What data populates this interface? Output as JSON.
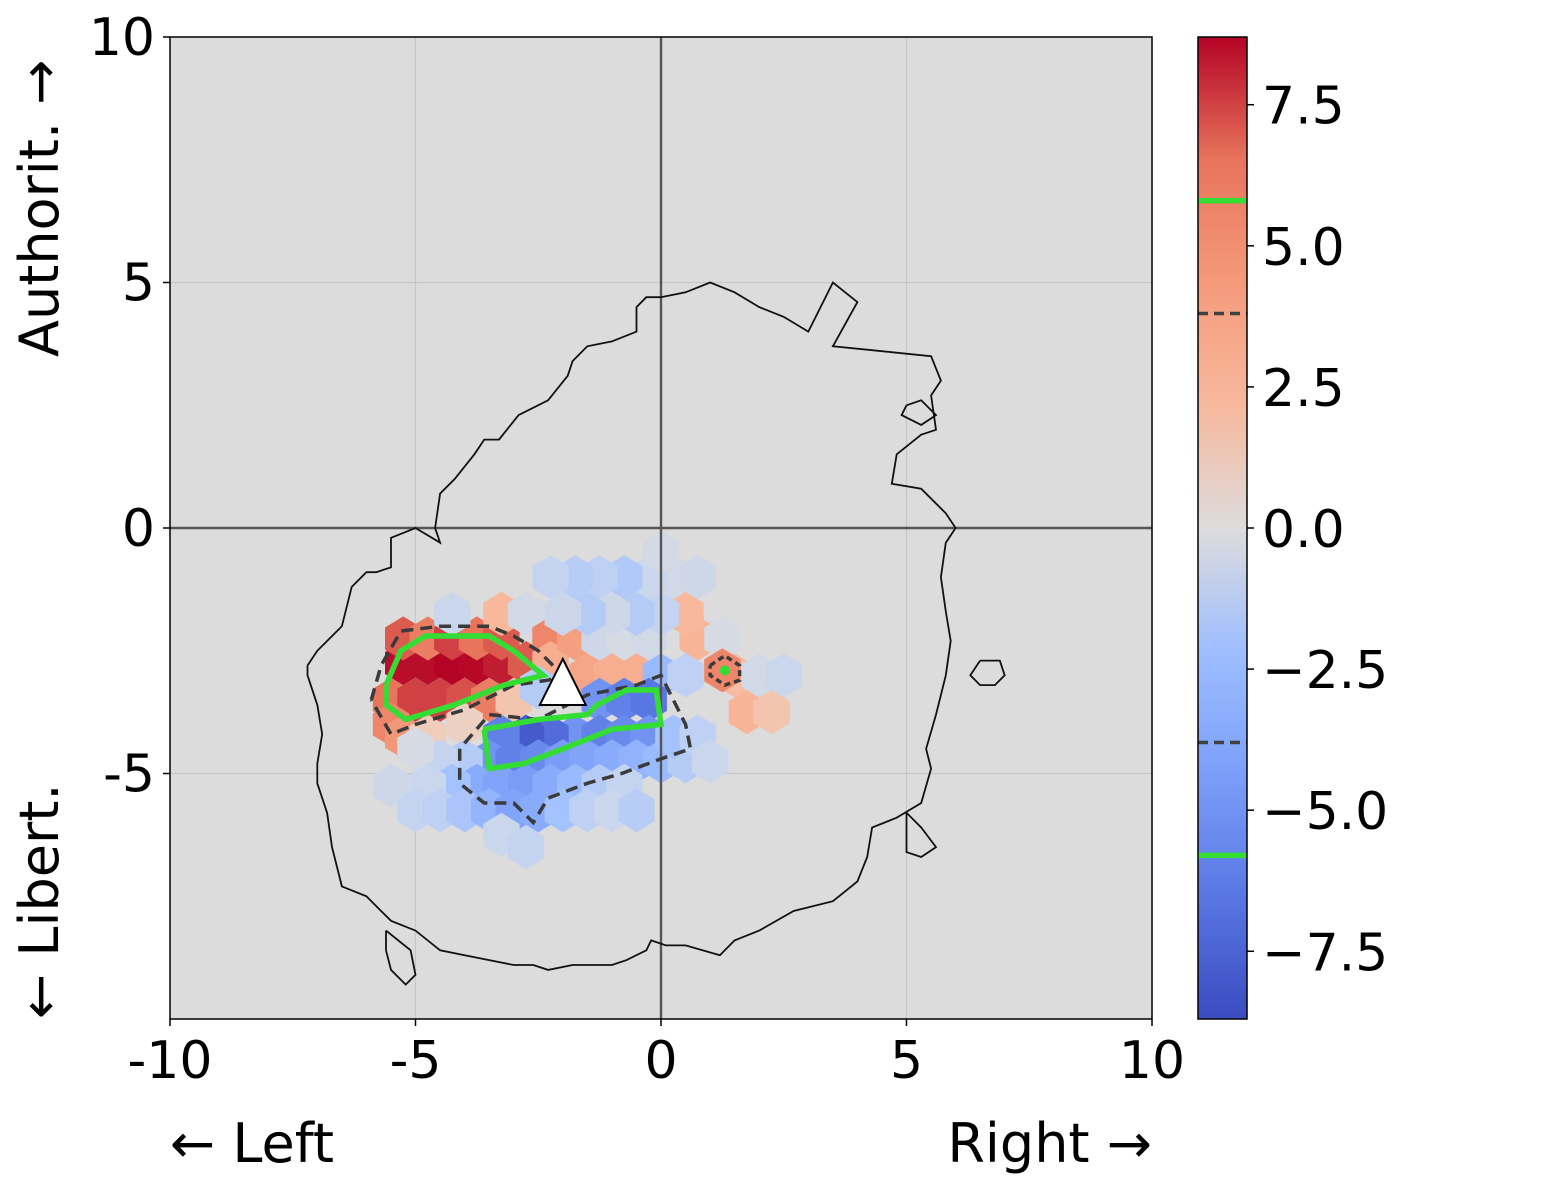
{
  "chart_data": {
    "type": "heatmap",
    "subtype": "hexbin",
    "title": "",
    "xlim": [
      -10,
      10
    ],
    "ylim": [
      -10,
      10
    ],
    "xticks": [
      "-10",
      "-5",
      "0",
      "5",
      "10"
    ],
    "yticks": [
      "-5",
      "0",
      "5",
      "10"
    ],
    "x_label_left": "← Left",
    "x_label_right": "Right →",
    "y_label_bottom": "← Libert.",
    "y_label_top": "Authorit. →",
    "grid": true,
    "background_color": "#dcdcdc",
    "colormap": "coolwarm",
    "colorbar": {
      "range": [
        -8.7,
        8.7
      ],
      "ticks": [
        "−7.5",
        "−5.0",
        "−2.5",
        "0.0",
        "2.5",
        "5.0",
        "7.5"
      ],
      "tick_values": [
        -7.5,
        -5.0,
        -2.5,
        0.0,
        2.5,
        5.0,
        7.5
      ],
      "contour_levels": [
        {
          "value": 5.8,
          "style": "solid",
          "color": "#33dd33"
        },
        {
          "value": 3.8,
          "style": "dashed",
          "color": "#404040"
        },
        {
          "value": -3.8,
          "style": "dashed",
          "color": "#404040"
        },
        {
          "value": -5.8,
          "style": "solid",
          "color": "#33dd33"
        }
      ]
    },
    "hexbins": [
      {
        "x": -5.5,
        "y": -3.5,
        "v": 6.5
      },
      {
        "x": -5.25,
        "y": -2.75,
        "v": 8.5
      },
      {
        "x": -5.0,
        "y": -3.5,
        "v": 7.5
      },
      {
        "x": -4.75,
        "y": -2.75,
        "v": 8.5
      },
      {
        "x": -4.5,
        "y": -3.5,
        "v": 7.5
      },
      {
        "x": -4.25,
        "y": -2.75,
        "v": 8.7
      },
      {
        "x": -4.0,
        "y": -3.5,
        "v": 7.2
      },
      {
        "x": -3.75,
        "y": -2.75,
        "v": 8.6
      },
      {
        "x": -3.5,
        "y": -3.5,
        "v": 6.0
      },
      {
        "x": -3.25,
        "y": -2.75,
        "v": 8.2
      },
      {
        "x": -2.75,
        "y": -2.75,
        "v": 7.0
      },
      {
        "x": -5.25,
        "y": -2.25,
        "v": 7.0
      },
      {
        "x": -4.75,
        "y": -2.25,
        "v": 6.0
      },
      {
        "x": -4.25,
        "y": -2.25,
        "v": 7.5
      },
      {
        "x": -3.75,
        "y": -2.25,
        "v": 6.5
      },
      {
        "x": -3.25,
        "y": -2.25,
        "v": 7.0
      },
      {
        "x": -5.5,
        "y": -4.0,
        "v": 5.5
      },
      {
        "x": -5.25,
        "y": -4.25,
        "v": 4.5
      },
      {
        "x": -4.75,
        "y": -4.25,
        "v": 1.0
      },
      {
        "x": -4.0,
        "y": -4.0,
        "v": 0.8
      },
      {
        "x": -4.25,
        "y": -1.75,
        "v": -0.8
      },
      {
        "x": -3.25,
        "y": -1.75,
        "v": 2.2
      },
      {
        "x": -2.75,
        "y": -1.75,
        "v": -0.5
      },
      {
        "x": -2.25,
        "y": -2.25,
        "v": 5.5
      },
      {
        "x": -2.25,
        "y": -2.75,
        "v": 3.0
      },
      {
        "x": -1.75,
        "y": -2.25,
        "v": 4.0
      },
      {
        "x": -1.5,
        "y": -3.0,
        "v": 3.5
      },
      {
        "x": -1.0,
        "y": -3.0,
        "v": 3.0
      },
      {
        "x": -1.25,
        "y": -2.25,
        "v": -0.6
      },
      {
        "x": -0.75,
        "y": -2.25,
        "v": -0.3
      },
      {
        "x": -0.25,
        "y": -2.25,
        "v": -0.5
      },
      {
        "x": -0.5,
        "y": -3.0,
        "v": 3.0
      },
      {
        "x": 0.0,
        "y": -3.0,
        "v": -2.5
      },
      {
        "x": 0.75,
        "y": -2.25,
        "v": 2.5
      },
      {
        "x": 0.5,
        "y": -3.0,
        "v": -1.2
      },
      {
        "x": 1.25,
        "y": -2.25,
        "v": -0.3
      },
      {
        "x": 1.5,
        "y": -3.0,
        "v": 2.0
      },
      {
        "x": 2.0,
        "y": -3.0,
        "v": -0.5
      },
      {
        "x": 2.5,
        "y": -3.0,
        "v": -0.8
      },
      {
        "x": 1.75,
        "y": -3.75,
        "v": 2.5
      },
      {
        "x": 2.25,
        "y": -3.75,
        "v": 1.5
      },
      {
        "x": 1.25,
        "y": -2.9,
        "v": 5.5
      },
      {
        "x": 0.5,
        "y": -1.75,
        "v": 2.2
      },
      {
        "x": 0.0,
        "y": -1.75,
        "v": -1.0
      },
      {
        "x": -0.5,
        "y": -1.75,
        "v": -1.5
      },
      {
        "x": -1.0,
        "y": -1.75,
        "v": -0.6
      },
      {
        "x": -1.5,
        "y": -1.75,
        "v": -1.5
      },
      {
        "x": -2.0,
        "y": -1.75,
        "v": -0.7
      },
      {
        "x": 0.25,
        "y": -1.0,
        "v": -0.5
      },
      {
        "x": -0.25,
        "y": -1.0,
        "v": -0.8
      },
      {
        "x": 0.75,
        "y": -1.0,
        "v": -0.6
      },
      {
        "x": -0.75,
        "y": -1.0,
        "v": -1.6
      },
      {
        "x": -1.25,
        "y": -1.0,
        "v": -1.2
      },
      {
        "x": -1.75,
        "y": -1.0,
        "v": -1.4
      },
      {
        "x": -2.25,
        "y": -1.0,
        "v": -1.0
      },
      {
        "x": 0.0,
        "y": -0.5,
        "v": -0.4
      },
      {
        "x": -3.0,
        "y": -3.5,
        "v": 1.5
      },
      {
        "x": -2.5,
        "y": -3.25,
        "v": -1.5
      },
      {
        "x": -1.25,
        "y": -3.5,
        "v": -5.0
      },
      {
        "x": -0.75,
        "y": -3.5,
        "v": -6.0
      },
      {
        "x": -0.25,
        "y": -3.5,
        "v": -6.5
      },
      {
        "x": -1.75,
        "y": -4.25,
        "v": -5.0
      },
      {
        "x": -1.25,
        "y": -4.25,
        "v": -6.0
      },
      {
        "x": -0.75,
        "y": -4.25,
        "v": -5.5
      },
      {
        "x": -0.25,
        "y": -4.25,
        "v": -5.0
      },
      {
        "x": -2.25,
        "y": -4.25,
        "v": -7.0
      },
      {
        "x": -2.75,
        "y": -4.25,
        "v": -8.0
      },
      {
        "x": -3.25,
        "y": -4.25,
        "v": -6.0
      },
      {
        "x": -3.5,
        "y": -4.75,
        "v": -5.0
      },
      {
        "x": -3.0,
        "y": -4.75,
        "v": -6.0
      },
      {
        "x": -2.5,
        "y": -4.75,
        "v": -5.5
      },
      {
        "x": -2.0,
        "y": -4.75,
        "v": -4.5
      },
      {
        "x": -1.5,
        "y": -4.75,
        "v": -4.0
      },
      {
        "x": -1.0,
        "y": -4.75,
        "v": -3.5
      },
      {
        "x": -0.5,
        "y": -4.75,
        "v": -3.0
      },
      {
        "x": 0.0,
        "y": -4.75,
        "v": -2.5
      },
      {
        "x": 0.5,
        "y": -4.75,
        "v": -1.5
      },
      {
        "x": 0.25,
        "y": -4.25,
        "v": -2.0
      },
      {
        "x": 0.75,
        "y": -4.25,
        "v": -1.2
      },
      {
        "x": 1.0,
        "y": -4.75,
        "v": -0.8
      },
      {
        "x": -4.0,
        "y": -4.75,
        "v": -1.5
      },
      {
        "x": -4.5,
        "y": -4.75,
        "v": -1.0
      },
      {
        "x": -3.75,
        "y": -5.25,
        "v": -3.5
      },
      {
        "x": -3.25,
        "y": -5.25,
        "v": -4.0
      },
      {
        "x": -2.75,
        "y": -5.25,
        "v": -4.5
      },
      {
        "x": -2.25,
        "y": -5.25,
        "v": -3.5
      },
      {
        "x": -1.75,
        "y": -5.25,
        "v": -2.5
      },
      {
        "x": -1.25,
        "y": -5.25,
        "v": -1.5
      },
      {
        "x": -0.75,
        "y": -5.25,
        "v": -1.0
      },
      {
        "x": -4.25,
        "y": -5.25,
        "v": -2.0
      },
      {
        "x": -4.75,
        "y": -5.25,
        "v": -0.8
      },
      {
        "x": -5.5,
        "y": -5.25,
        "v": -0.6
      },
      {
        "x": -5.0,
        "y": -5.75,
        "v": -1.0
      },
      {
        "x": -4.5,
        "y": -5.75,
        "v": -1.2
      },
      {
        "x": -4.0,
        "y": -5.75,
        "v": -1.8
      },
      {
        "x": -3.5,
        "y": -5.75,
        "v": -2.8
      },
      {
        "x": -3.0,
        "y": -5.75,
        "v": -4.0
      },
      {
        "x": -2.5,
        "y": -5.75,
        "v": -3.5
      },
      {
        "x": -2.0,
        "y": -5.75,
        "v": -2.0
      },
      {
        "x": -1.5,
        "y": -5.75,
        "v": -1.2
      },
      {
        "x": -1.0,
        "y": -5.75,
        "v": -0.8
      },
      {
        "x": -0.5,
        "y": -5.75,
        "v": -1.4
      },
      {
        "x": -3.25,
        "y": -6.25,
        "v": -0.8
      },
      {
        "x": -2.75,
        "y": -6.5,
        "v": -1.0
      },
      {
        "x": -5.0,
        "y": -4.5,
        "v": -0.3
      }
    ],
    "contours": {
      "support_outline": [
        [
          -7.2,
          -2.8
        ],
        [
          -7.0,
          -2.5
        ],
        [
          -6.5,
          -2.0
        ],
        [
          -6.3,
          -1.2
        ],
        [
          -6.0,
          -0.9
        ],
        [
          -5.8,
          -0.9
        ],
        [
          -5.5,
          -0.8
        ],
        [
          -5.5,
          -0.2
        ],
        [
          -5.0,
          0.0
        ],
        [
          -4.5,
          -0.3
        ],
        [
          -4.6,
          0.0
        ],
        [
          -4.5,
          0.7
        ],
        [
          -4.2,
          1.0
        ],
        [
          -3.8,
          1.5
        ],
        [
          -3.6,
          1.8
        ],
        [
          -3.3,
          1.8
        ],
        [
          -2.9,
          2.3
        ],
        [
          -2.3,
          2.6
        ],
        [
          -1.9,
          3.1
        ],
        [
          -1.8,
          3.4
        ],
        [
          -1.5,
          3.7
        ],
        [
          -1.0,
          3.8
        ],
        [
          -0.5,
          4.0
        ],
        [
          -0.5,
          4.5
        ],
        [
          -0.3,
          4.7
        ],
        [
          0.0,
          4.7
        ],
        [
          0.5,
          4.8
        ],
        [
          1.0,
          5.0
        ],
        [
          1.5,
          4.8
        ],
        [
          2.0,
          4.5
        ],
        [
          2.5,
          4.3
        ],
        [
          3.0,
          4.0
        ],
        [
          3.5,
          5.0
        ],
        [
          4.0,
          4.6
        ],
        [
          3.5,
          3.7
        ],
        [
          4.5,
          3.6
        ],
        [
          5.5,
          3.5
        ],
        [
          5.7,
          3.0
        ],
        [
          5.5,
          2.7
        ],
        [
          5.6,
          2.0
        ],
        [
          5.3,
          1.9
        ],
        [
          4.8,
          1.5
        ],
        [
          4.7,
          0.9
        ],
        [
          5.3,
          0.8
        ],
        [
          5.8,
          0.3
        ],
        [
          6.0,
          0.0
        ],
        [
          5.8,
          -0.3
        ],
        [
          5.7,
          -1.0
        ],
        [
          5.8,
          -1.7
        ],
        [
          5.9,
          -2.3
        ],
        [
          5.8,
          -3.0
        ],
        [
          5.6,
          -3.8
        ],
        [
          5.4,
          -4.5
        ],
        [
          5.5,
          -4.9
        ],
        [
          5.3,
          -5.6
        ],
        [
          4.8,
          -5.9
        ],
        [
          4.3,
          -6.1
        ],
        [
          4.2,
          -6.7
        ],
        [
          4.0,
          -7.2
        ],
        [
          3.5,
          -7.6
        ],
        [
          2.7,
          -7.8
        ],
        [
          2.0,
          -8.2
        ],
        [
          1.5,
          -8.4
        ],
        [
          1.2,
          -8.7
        ],
        [
          0.5,
          -8.5
        ],
        [
          0.1,
          -8.5
        ],
        [
          -0.2,
          -8.4
        ],
        [
          -0.3,
          -8.6
        ],
        [
          -0.7,
          -8.8
        ],
        [
          -1.0,
          -8.9
        ],
        [
          -1.8,
          -8.9
        ],
        [
          -2.3,
          -9.0
        ],
        [
          -2.6,
          -8.9
        ],
        [
          -3.0,
          -8.9
        ],
        [
          -3.5,
          -8.8
        ],
        [
          -4.0,
          -8.7
        ],
        [
          -4.5,
          -8.6
        ],
        [
          -5.0,
          -8.2
        ],
        [
          -5.5,
          -8.0
        ],
        [
          -5.7,
          -7.8
        ],
        [
          -6.0,
          -7.5
        ],
        [
          -6.5,
          -7.3
        ],
        [
          -6.7,
          -6.5
        ],
        [
          -6.8,
          -5.8
        ],
        [
          -7.0,
          -5.2
        ],
        [
          -7.0,
          -4.8
        ],
        [
          -6.9,
          -4.2
        ],
        [
          -7.0,
          -3.6
        ],
        [
          -7.2,
          -3.0
        ],
        [
          -7.2,
          -2.8
        ]
      ],
      "islands": [
        [
          [
            6.5,
            -2.7
          ],
          [
            6.9,
            -2.7
          ],
          [
            7.0,
            -3.0
          ],
          [
            6.8,
            -3.2
          ],
          [
            6.5,
            -3.2
          ],
          [
            6.3,
            -3.0
          ],
          [
            6.5,
            -2.7
          ]
        ],
        [
          [
            5.0,
            -5.8
          ],
          [
            5.3,
            -6.1
          ],
          [
            5.6,
            -6.5
          ],
          [
            5.3,
            -6.7
          ],
          [
            5.0,
            -6.6
          ],
          [
            5.0,
            -5.8
          ]
        ],
        [
          [
            5.0,
            2.5
          ],
          [
            5.3,
            2.6
          ],
          [
            5.6,
            2.3
          ],
          [
            5.3,
            2.1
          ],
          [
            4.9,
            2.3
          ],
          [
            5.0,
            2.5
          ]
        ],
        [
          [
            -5.6,
            -8.2
          ],
          [
            -5.1,
            -8.6
          ],
          [
            -5.0,
            -9.1
          ],
          [
            -5.2,
            -9.3
          ],
          [
            -5.5,
            -9.0
          ],
          [
            -5.6,
            -8.6
          ],
          [
            -5.6,
            -8.2
          ]
        ]
      ],
      "pos_dashed": [
        [
          -5.9,
          -3.5
        ],
        [
          -5.7,
          -2.8
        ],
        [
          -5.3,
          -2.1
        ],
        [
          -4.5,
          -2.0
        ],
        [
          -3.5,
          -2.0
        ],
        [
          -3.0,
          -2.2
        ],
        [
          -2.5,
          -2.5
        ],
        [
          -2.0,
          -3.0
        ],
        [
          -2.3,
          -3.1
        ],
        [
          -3.0,
          -3.2
        ],
        [
          -4.0,
          -3.7
        ],
        [
          -5.0,
          -4.0
        ],
        [
          -5.5,
          -4.2
        ],
        [
          -5.9,
          -3.5
        ]
      ],
      "pos_solid": [
        [
          -5.6,
          -3.2
        ],
        [
          -5.3,
          -2.5
        ],
        [
          -4.8,
          -2.2
        ],
        [
          -3.5,
          -2.2
        ],
        [
          -3.0,
          -2.5
        ],
        [
          -2.4,
          -3.0
        ],
        [
          -3.2,
          -3.2
        ],
        [
          -4.2,
          -3.6
        ],
        [
          -5.2,
          -3.9
        ],
        [
          -5.6,
          -3.6
        ],
        [
          -5.6,
          -3.2
        ]
      ],
      "neg_dashed": [
        [
          -4.1,
          -4.5
        ],
        [
          -4.1,
          -5.2
        ],
        [
          -3.6,
          -5.6
        ],
        [
          -3.0,
          -5.6
        ],
        [
          -2.6,
          -6.0
        ],
        [
          -2.3,
          -5.5
        ],
        [
          -1.5,
          -5.2
        ],
        [
          -0.8,
          -5.0
        ],
        [
          0.0,
          -4.7
        ],
        [
          0.6,
          -4.5
        ],
        [
          0.5,
          -4.0
        ],
        [
          0.0,
          -3.0
        ],
        [
          -0.5,
          -3.2
        ],
        [
          -1.5,
          -3.4
        ],
        [
          -2.5,
          -3.9
        ],
        [
          -3.5,
          -3.8
        ],
        [
          -4.1,
          -4.5
        ]
      ],
      "neg_solid": [
        [
          -3.6,
          -4.1
        ],
        [
          -3.5,
          -4.9
        ],
        [
          -2.8,
          -4.8
        ],
        [
          -2.0,
          -4.5
        ],
        [
          -1.0,
          -4.1
        ],
        [
          0.0,
          -4.0
        ],
        [
          -0.1,
          -3.3
        ],
        [
          -0.7,
          -3.3
        ],
        [
          -1.3,
          -3.6
        ],
        [
          -1.5,
          -3.8
        ],
        [
          -2.5,
          -3.9
        ],
        [
          -3.6,
          -4.1
        ]
      ],
      "small_pos_dashed": [
        [
          1.0,
          -2.8
        ],
        [
          1.3,
          -2.6
        ],
        [
          1.6,
          -2.8
        ],
        [
          1.6,
          -3.1
        ],
        [
          1.3,
          -3.2
        ],
        [
          1.0,
          -3.0
        ],
        [
          1.0,
          -2.8
        ]
      ]
    },
    "marker": {
      "shape": "triangle",
      "x": -2.0,
      "y": -3.4,
      "color": "#ffffff"
    }
  }
}
